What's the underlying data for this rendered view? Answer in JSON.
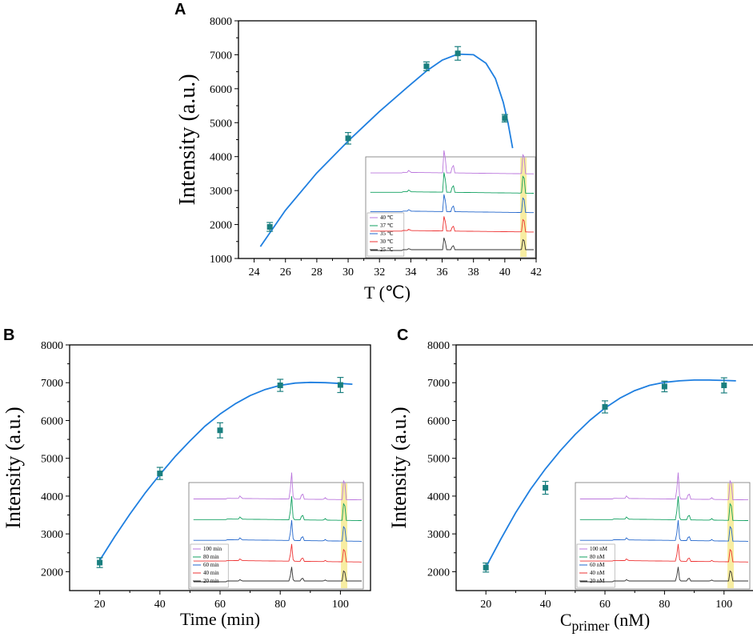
{
  "figure": {
    "panels": [
      "A",
      "B",
      "C"
    ]
  },
  "colors": {
    "fit": "#1f7fe0",
    "points": "#1a7f7f",
    "axis": "#000000",
    "highlight": "#f5e88a",
    "trace_palette": [
      "#333333",
      "#ee3333",
      "#2266cc",
      "#11a060",
      "#bb77dd"
    ]
  },
  "chart_data": [
    {
      "panel": "A",
      "type": "scatter",
      "title": "",
      "xlabel": "T (℃)",
      "ylabel": "Intensity (a.u.)",
      "xlim": [
        23,
        42
      ],
      "ylim": [
        1000,
        8000
      ],
      "xticks": [
        24,
        26,
        28,
        30,
        32,
        34,
        36,
        38,
        40,
        42
      ],
      "yticks": [
        1000,
        2000,
        3000,
        4000,
        5000,
        6000,
        7000,
        8000
      ],
      "x": [
        25,
        30,
        35,
        37,
        40
      ],
      "y": [
        1930,
        4540,
        6660,
        7040,
        5130
      ],
      "yerr": [
        130,
        170,
        130,
        200,
        110
      ],
      "fit": {
        "x": [
          24.4,
          26,
          28,
          30,
          32,
          34,
          35,
          36,
          37,
          38,
          38.8,
          39.4,
          39.9,
          40.2,
          40.5
        ],
        "y": [
          1350,
          2420,
          3520,
          4460,
          5330,
          6130,
          6520,
          6840,
          7020,
          7000,
          6750,
          6300,
          5600,
          5000,
          4250
        ]
      },
      "inset": {
        "legend": [
          "40 ℃",
          "37 ℃",
          "35 ℃",
          "30 ℃",
          "25 ℃"
        ]
      }
    },
    {
      "panel": "B",
      "type": "scatter",
      "title": "",
      "xlabel": "Time (min)",
      "ylabel": "Intensity (a.u.)",
      "xlim": [
        10,
        110
      ],
      "ylim": [
        1500,
        8000
      ],
      "xticks": [
        20,
        40,
        60,
        80,
        100
      ],
      "yticks": [
        2000,
        3000,
        4000,
        5000,
        6000,
        7000,
        8000
      ],
      "x": [
        20,
        40,
        60,
        80,
        100
      ],
      "y": [
        2240,
        4600,
        5740,
        6930,
        6940
      ],
      "yerr": [
        130,
        160,
        200,
        160,
        200
      ],
      "fit": {
        "x": [
          20,
          25,
          30,
          35,
          40,
          45,
          50,
          55,
          60,
          65,
          70,
          75,
          80,
          85,
          90,
          95,
          100,
          104
        ],
        "y": [
          2300,
          2930,
          3520,
          4070,
          4570,
          5040,
          5460,
          5850,
          6170,
          6440,
          6660,
          6820,
          6930,
          6990,
          7010,
          7000,
          6980,
          6960
        ]
      },
      "inset": {
        "legend": [
          "100 min",
          "80  min",
          "60  min",
          "40  min",
          "20  min"
        ]
      }
    },
    {
      "panel": "C",
      "type": "scatter",
      "title": "",
      "xlabel": "C",
      "xlabel_sub": "primer",
      "xlabel_suffix": " (nM)",
      "ylabel": "Intensity (a.u.)",
      "xlim": [
        10,
        110
      ],
      "ylim": [
        1500,
        8000
      ],
      "xticks": [
        20,
        40,
        60,
        80,
        100
      ],
      "yticks": [
        2000,
        3000,
        4000,
        5000,
        6000,
        7000,
        8000
      ],
      "x": [
        20,
        40,
        60,
        80,
        100
      ],
      "y": [
        2110,
        4220,
        6360,
        6900,
        6930
      ],
      "yerr": [
        120,
        170,
        160,
        140,
        200
      ],
      "fit": {
        "x": [
          20,
          25,
          30,
          35,
          40,
          45,
          50,
          55,
          60,
          65,
          70,
          75,
          80,
          85,
          90,
          95,
          100,
          104
        ],
        "y": [
          2120,
          2860,
          3560,
          4180,
          4720,
          5200,
          5630,
          6010,
          6330,
          6590,
          6790,
          6930,
          7010,
          7050,
          7070,
          7070,
          7060,
          7050
        ]
      },
      "inset": {
        "legend": [
          "100 nM",
          "80  nM",
          "60  nM",
          "40  nM",
          "20  nM"
        ]
      }
    }
  ]
}
